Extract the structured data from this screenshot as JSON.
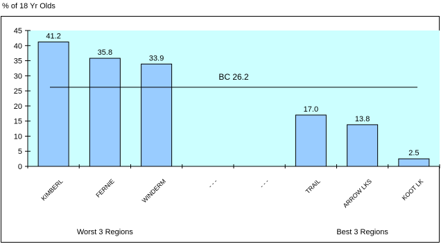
{
  "chart_data": {
    "type": "bar",
    "title": "",
    "ylabel": "% of 18 Yr Olds",
    "xlabel": "",
    "ylim": [
      0,
      45
    ],
    "yticks": [
      0,
      5,
      10,
      15,
      20,
      25,
      30,
      35,
      40,
      45
    ],
    "categories": [
      "KIMBERL",
      "FERNIE",
      "WINDERM",
      "- - -",
      "- - -",
      "TRAIL",
      "ARROW LKS",
      "KOOT LK"
    ],
    "values": [
      41.2,
      35.8,
      33.9,
      null,
      null,
      17.0,
      13.8,
      2.5
    ],
    "value_labels": [
      "41.2",
      "35.8",
      "33.9",
      "",
      "",
      "17.0",
      "13.8",
      "2.5"
    ],
    "reference_line": {
      "label": "BC 26.2",
      "value": 26.2
    },
    "group_labels": [
      "Worst 3 Regions",
      "Best 3 Regions"
    ],
    "grid": false,
    "colors": {
      "plot_bg": "#ccffff",
      "bar": "#99ccff",
      "bar_edge": "#000000"
    }
  }
}
